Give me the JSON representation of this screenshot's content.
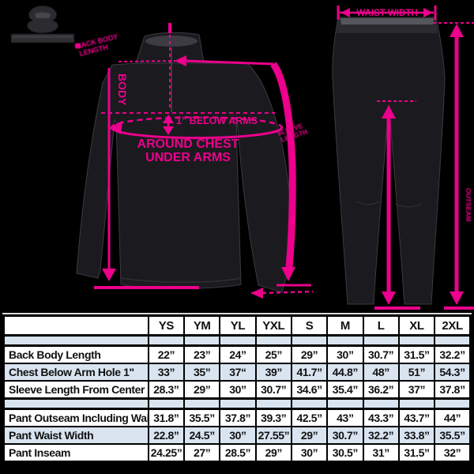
{
  "colors": {
    "accent_pink": "#EC008C",
    "garment": "#1b1b1f",
    "table_alt_row": "#D9E4F0",
    "background": "#000000"
  },
  "brand": {
    "logo_icon": "mascot-logo-icon"
  },
  "jacket_diagram": {
    "body_label": "BODY",
    "below_arms_label": "1” BELOW ARMS",
    "around_chest_line1": "AROUND CHEST",
    "around_chest_line2": "UNDER ARMS",
    "shoulder_label_line1": "BACK BODY",
    "shoulder_label_line2": "LENGTH",
    "sleeve_label_line1": "SLEEVE",
    "sleeve_label_line2": "LENGTH"
  },
  "pants_diagram": {
    "waist_label": "WAIST WIDTH",
    "outseam_label": "OUTSEAM"
  },
  "size_table": {
    "columns": [
      "YS",
      "YM",
      "YL",
      "YXL",
      "S",
      "M",
      "L",
      "XL",
      "2XL"
    ],
    "rows": [
      {
        "label": "Back Body Length",
        "values": [
          "22”",
          "23”",
          "24”",
          "25”",
          "29”",
          "30”",
          "30.7”",
          "31.5”",
          "32.2”"
        ]
      },
      {
        "label": "Chest Below Arm Hole 1\"",
        "values": [
          "33”",
          "35”",
          "37“",
          "39”",
          "41.7”",
          "44.8”",
          "48”",
          "51”",
          "54.3”"
        ]
      },
      {
        "label": "Sleeve Length From Center Back",
        "values": [
          "28.3”",
          "29”",
          "30”",
          "30.7”",
          "34.6”",
          "35.4”",
          "36.2”",
          "37”",
          "37.8”"
        ]
      },
      {
        "label": "Pant Outseam Including Waist",
        "values": [
          "31.8”",
          "35.5”",
          "37.8”",
          "39.3”",
          "42.5”",
          "43”",
          "43.3”",
          "43.7”",
          "44”"
        ]
      },
      {
        "label": "Pant Waist Width",
        "values": [
          "22.8”",
          "24.5”",
          "30”",
          "27.55”",
          "29”",
          "30.7”",
          "32.2”",
          "33.8”",
          "35.5”"
        ]
      },
      {
        "label": "Pant Inseam",
        "values": [
          "24.25”",
          "27”",
          "28.5”",
          "29”",
          "30”",
          "30.5”",
          "31”",
          "31.5”",
          "32”"
        ]
      }
    ],
    "group_break_after": 3
  }
}
